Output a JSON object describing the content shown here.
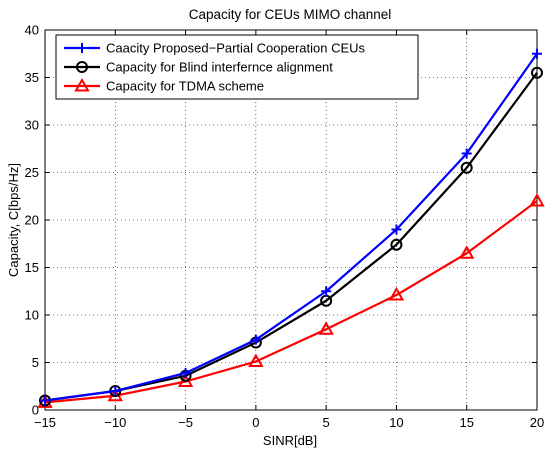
{
  "chart_data": {
    "type": "line",
    "title": "Capacity  for CEUs  MIMO channel",
    "xlabel": "SINR[dB]",
    "ylabel": "Capacity, C[bps/Hz]",
    "x": [
      -15,
      -10,
      -5,
      0,
      5,
      10,
      15,
      20
    ],
    "xlim": [
      -15,
      20
    ],
    "ylim": [
      0,
      40
    ],
    "xticks": [
      -15,
      -10,
      -5,
      0,
      5,
      10,
      15,
      20
    ],
    "yticks": [
      0,
      5,
      10,
      15,
      20,
      25,
      30,
      35,
      40
    ],
    "xtick_labels": [
      "−15",
      "−10",
      "−5",
      "0",
      "5",
      "10",
      "15",
      "20"
    ],
    "ytick_labels": [
      "0",
      "5",
      "10",
      "15",
      "20",
      "25",
      "30",
      "35",
      "40"
    ],
    "grid": true,
    "legend_position": "top-left",
    "series": [
      {
        "name": "Caacity Proposed−Partial Cooperation CEUs",
        "color": "#0000ff",
        "marker": "plus",
        "values": [
          1.0,
          2.0,
          3.9,
          7.4,
          12.5,
          19.0,
          27.0,
          37.5
        ]
      },
      {
        "name": "Capacity for Blind interfernce alignment",
        "color": "#000000",
        "marker": "circle",
        "values": [
          1.0,
          2.0,
          3.6,
          7.1,
          11.5,
          17.4,
          25.5,
          35.5
        ]
      },
      {
        "name": "Capacity for TDMA scheme",
        "color": "#ff0000",
        "marker": "triangle",
        "values": [
          0.8,
          1.5,
          3.0,
          5.1,
          8.5,
          12.1,
          16.5,
          22.0
        ]
      }
    ]
  }
}
